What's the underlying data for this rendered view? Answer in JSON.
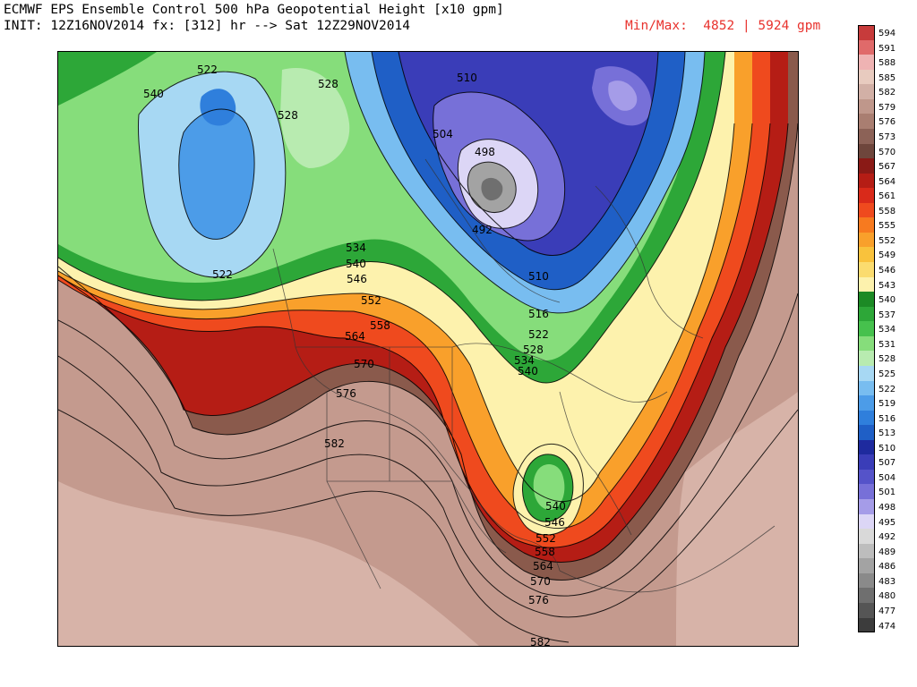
{
  "header": {
    "line1": "ECMWF EPS Ensemble Control 500 hPa Geopotential Height [x10 gpm]",
    "line2": "INIT: 12Z16NOV2014 fx: [312] hr --> Sat 12Z29NOV2014",
    "minmax": "Min/Max:  4852 | 5924 gpm"
  },
  "colorbar": {
    "levels": [
      {
        "label": "594",
        "color": "#c73b3b"
      },
      {
        "label": "591",
        "color": "#e06a6a"
      },
      {
        "label": "588",
        "color": "#efb3b3"
      },
      {
        "label": "585",
        "color": "#e8cbbf"
      },
      {
        "label": "582",
        "color": "#d2b0a6"
      },
      {
        "label": "579",
        "color": "#bf978b"
      },
      {
        "label": "576",
        "color": "#a97e71"
      },
      {
        "label": "573",
        "color": "#8c6257"
      },
      {
        "label": "570",
        "color": "#6e463c"
      },
      {
        "label": "567",
        "color": "#8a1a16"
      },
      {
        "label": "564",
        "color": "#b51d15"
      },
      {
        "label": "561",
        "color": "#d92a1a"
      },
      {
        "label": "558",
        "color": "#ef4a1e"
      },
      {
        "label": "555",
        "color": "#f77a1f"
      },
      {
        "label": "552",
        "color": "#f9a02b"
      },
      {
        "label": "549",
        "color": "#f9c23c"
      },
      {
        "label": "546",
        "color": "#fbdc6f"
      },
      {
        "label": "543",
        "color": "#fdf2ad"
      },
      {
        "label": "540",
        "color": "#1c8a25"
      },
      {
        "label": "537",
        "color": "#2da738"
      },
      {
        "label": "534",
        "color": "#46c14d"
      },
      {
        "label": "531",
        "color": "#86dd7b"
      },
      {
        "label": "528",
        "color": "#b8ebb0"
      },
      {
        "label": "525",
        "color": "#a7d8f3"
      },
      {
        "label": "522",
        "color": "#78bdf0"
      },
      {
        "label": "519",
        "color": "#4c9ce8"
      },
      {
        "label": "516",
        "color": "#2f7fdc"
      },
      {
        "label": "513",
        "color": "#1f5fc6"
      },
      {
        "label": "510",
        "color": "#1e2a9e"
      },
      {
        "label": "507",
        "color": "#3a3db8"
      },
      {
        "label": "504",
        "color": "#5553c9"
      },
      {
        "label": "501",
        "color": "#7770d8"
      },
      {
        "label": "498",
        "color": "#a59ce8"
      },
      {
        "label": "495",
        "color": "#dcd6f6"
      },
      {
        "label": "492",
        "color": "#d9d9d9"
      },
      {
        "label": "489",
        "color": "#bdbdbd"
      },
      {
        "label": "486",
        "color": "#a3a3a3"
      },
      {
        "label": "483",
        "color": "#8a8a8a"
      },
      {
        "label": "480",
        "color": "#6f6f6f"
      },
      {
        "label": "477",
        "color": "#555555"
      },
      {
        "label": "474",
        "color": "#3c3c3c"
      }
    ]
  },
  "map": {
    "contour_labels": [
      "522",
      "540",
      "528",
      "510",
      "528",
      "504",
      "498",
      "492",
      "522",
      "534",
      "540",
      "546",
      "552",
      "558",
      "564",
      "570",
      "576",
      "582",
      "510",
      "516",
      "522",
      "528",
      "534",
      "540",
      "540",
      "546",
      "552",
      "558",
      "564",
      "570",
      "576",
      "582"
    ]
  }
}
